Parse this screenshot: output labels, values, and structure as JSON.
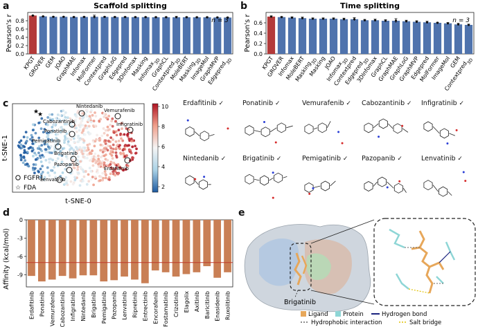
{
  "panels": {
    "a": "a",
    "b": "b",
    "c": "c",
    "d": "d",
    "e": "e"
  },
  "colors": {
    "bar": "#4f73ad",
    "highlight": "#b33a3a",
    "affinity": "#c97f55",
    "refline": "#c0392b"
  },
  "chart_data": [
    {
      "type": "bar",
      "title": "Scaffold splitting",
      "ylabel": "Pearson's r",
      "ylim": [
        0.0,
        1.0
      ],
      "yticks": [
        "0.0",
        "0.2",
        "0.4",
        "0.6",
        "0.8"
      ],
      "annotation": "n = 3",
      "categories": [
        "KPGT",
        "GROVER",
        "GEM",
        "JOAO",
        "GraphMAE",
        "Infomax",
        "MolFormer",
        "Contextpred",
        "GraphLoG",
        "Edgepred",
        "3DInfomax",
        "Masking",
        "Infomax_3D",
        "GraphCL",
        "Contextpred_3D",
        "MoleBERT",
        "Masking_3D",
        "ImageMol",
        "GraphMVP",
        "Edgepred_3D"
      ],
      "values": [
        0.925,
        0.905,
        0.895,
        0.895,
        0.89,
        0.892,
        0.895,
        0.893,
        0.89,
        0.89,
        0.888,
        0.888,
        0.885,
        0.885,
        0.885,
        0.885,
        0.883,
        0.883,
        0.88,
        0.877
      ],
      "errors": [
        0.005,
        0.005,
        0.005,
        0.004,
        0.004,
        0.006,
        0.04,
        0.005,
        0.005,
        0.004,
        0.005,
        0.005,
        0.006,
        0.005,
        0.02,
        0.01,
        0.006,
        0.006,
        0.005,
        0.006
      ]
    },
    {
      "type": "bar",
      "title": "Time splitting",
      "ylabel": "Pearson's r",
      "ylim": [
        0.0,
        0.8
      ],
      "yticks": [
        "0.0",
        "0.2",
        "0.4",
        "0.6"
      ],
      "annotation": "n = 3",
      "categories": [
        "KPGT",
        "GROVER",
        "Infomax",
        "MoleBERT",
        "Masking_3D",
        "Masking",
        "JOAO",
        "Infomax_3D",
        "Contextpred",
        "Edgepred_3D",
        "3DInfomax",
        "GraphCL",
        "GraphMAE",
        "GraphLoG",
        "GraphMVP",
        "Edgepred",
        "MolFormer",
        "ImageMol",
        "GEM",
        "Contextpred_3D"
      ],
      "values": [
        0.72,
        0.71,
        0.7,
        0.69,
        0.68,
        0.68,
        0.68,
        0.67,
        0.67,
        0.65,
        0.65,
        0.64,
        0.64,
        0.63,
        0.62,
        0.61,
        0.6,
        0.59,
        0.57,
        0.56
      ],
      "errors": [
        0.015,
        0.01,
        0.015,
        0.02,
        0.015,
        0.015,
        0.015,
        0.02,
        0.03,
        0.015,
        0.02,
        0.02,
        0.04,
        0.02,
        0.02,
        0.02,
        0.01,
        0.015,
        0.02,
        0.015
      ]
    },
    {
      "type": "scatter",
      "xlabel": "t-SNE-0",
      "ylabel": "t-SNE-1",
      "colorbar_ticks": [
        "10",
        "8",
        "6",
        "4",
        "2"
      ],
      "legend": [
        "FGFR1",
        "FDA"
      ],
      "labels": [
        "Nintedanib",
        "Vemurafenib",
        "Cabozantinib",
        "Infigratinib",
        "Ponatinib",
        "Pemigatinib",
        "Brigatinib",
        "Pazopanib",
        "Lenvatinib",
        "Erdafitinib"
      ]
    },
    {
      "type": "bar",
      "ylabel": "Affinity (kcal/mol)",
      "ylim": [
        -11,
        0
      ],
      "yticks": [
        "0",
        "-3",
        "-6",
        "-9"
      ],
      "reference_line": -7,
      "categories": [
        "Erdafitinib",
        "Ponatinib",
        "Vemurafenib",
        "Cabozantinib",
        "Infigratinib",
        "Nintedanib",
        "Brigatinib",
        "Pemigatinib",
        "Pazopanib",
        "Lenvatinib",
        "Ripretinib",
        "Entrectinib",
        "Encorafenib",
        "Fostamatinib",
        "Crizotinib",
        "Elagolix",
        "Axitinib",
        "Baricitinib",
        "Enasidenib",
        "Ruxolitinib"
      ],
      "values": [
        -9.2,
        -10.1,
        -9.8,
        -9.2,
        -9.6,
        -9.1,
        -9.1,
        -10.1,
        -9.9,
        -9.3,
        -9.8,
        -10.4,
        -8.3,
        -8.6,
        -9.3,
        -8.9,
        -8.6,
        -7.6,
        -9.5,
        -8.6
      ]
    }
  ],
  "molecules": [
    {
      "name": "Erdafitinib"
    },
    {
      "name": "Ponatinib"
    },
    {
      "name": "Vemurafenib"
    },
    {
      "name": "Cabozantinib"
    },
    {
      "name": "Infigratinib"
    },
    {
      "name": "Nintedanib"
    },
    {
      "name": "Brigatinib"
    },
    {
      "name": "Pemigatinib"
    },
    {
      "name": "Pazopanib"
    },
    {
      "name": "Lenvatinib"
    }
  ],
  "panel_e": {
    "ligand_label": "Brigatinib",
    "legend": [
      "Ligand",
      "Protein",
      "Hydrogen bond",
      "Hydrophobic interaction",
      "Salt bridge"
    ],
    "legend_colors": [
      "#e7a75a",
      "#8ed6d6",
      "#1a237e",
      "#666666",
      "#e0c000"
    ]
  }
}
